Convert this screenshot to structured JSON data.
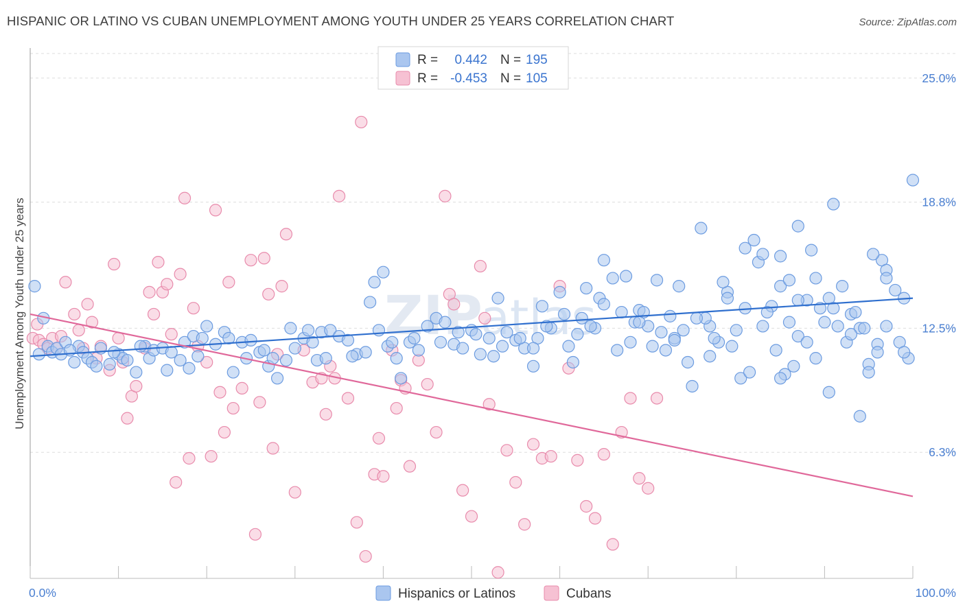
{
  "title": "HISPANIC OR LATINO VS CUBAN UNEMPLOYMENT AMONG YOUTH UNDER 25 YEARS CORRELATION CHART",
  "source": "Source: ZipAtlas.com",
  "colors": {
    "blue_fill": "#aac6ef",
    "blue_stroke": "#6b9be0",
    "blue_line": "#2f6fce",
    "pink_fill": "#f6c1d3",
    "pink_stroke": "#e88aab",
    "pink_line": "#e0689a",
    "axis_text": "#4a7fd1",
    "grid": "#dddddd"
  },
  "legend": {
    "r_label": "R =",
    "n_label": "N =",
    "series1": {
      "r": "0.442",
      "n": "195"
    },
    "series2": {
      "r": "-0.453",
      "n": "105"
    }
  },
  "chart_data": {
    "type": "scatter",
    "title": "HISPANIC OR LATINO VS CUBAN UNEMPLOYMENT AMONG YOUTH UNDER 25 YEARS CORRELATION CHART",
    "xlabel": "",
    "ylabel": "Unemployment Among Youth under 25 years",
    "xlim": [
      0,
      100
    ],
    "ylim": [
      0,
      26.5
    ],
    "x_tick_labels": [
      "0.0%",
      "100.0%"
    ],
    "y_ticks": [
      6.3,
      12.5,
      18.8,
      25.0
    ],
    "y_tick_labels": [
      "6.3%",
      "12.5%",
      "18.8%",
      "25.0%"
    ],
    "legend_position": "top-center",
    "watermark": "ZIPatlas",
    "series": [
      {
        "name": "Hispanics or Latinos",
        "r": 0.442,
        "n": 195,
        "trend": {
          "x": [
            0,
            100
          ],
          "y": [
            11.1,
            14.0
          ]
        },
        "points": [
          [
            0.5,
            14.6
          ],
          [
            1.5,
            13.0
          ],
          [
            2.0,
            11.6
          ],
          [
            2.5,
            11.3
          ],
          [
            3.0,
            11.5
          ],
          [
            3.5,
            11.2
          ],
          [
            4.0,
            11.8
          ],
          [
            5.0,
            10.8
          ],
          [
            5.5,
            11.6
          ],
          [
            6.0,
            11.3
          ],
          [
            6.5,
            11.0
          ],
          [
            7.0,
            10.8
          ],
          [
            8.0,
            11.5
          ],
          [
            9.0,
            10.7
          ],
          [
            10.0,
            11.2
          ],
          [
            10.5,
            11.0
          ],
          [
            11.0,
            10.9
          ],
          [
            12.0,
            10.3
          ],
          [
            13.0,
            11.6
          ],
          [
            13.5,
            11.0
          ],
          [
            14.0,
            11.4
          ],
          [
            15.0,
            11.5
          ],
          [
            16.0,
            11.3
          ],
          [
            17.0,
            10.9
          ],
          [
            17.5,
            11.8
          ],
          [
            18.0,
            10.5
          ],
          [
            18.5,
            12.1
          ],
          [
            19.0,
            11.1
          ],
          [
            20.0,
            12.6
          ],
          [
            21.0,
            11.7
          ],
          [
            22.0,
            12.3
          ],
          [
            23.0,
            10.3
          ],
          [
            24.0,
            11.8
          ],
          [
            25.0,
            11.9
          ],
          [
            26.0,
            11.3
          ],
          [
            27.0,
            10.6
          ],
          [
            27.5,
            11.0
          ],
          [
            28.0,
            10.0
          ],
          [
            29.0,
            10.9
          ],
          [
            30.0,
            11.5
          ],
          [
            31.0,
            12.0
          ],
          [
            32.0,
            11.8
          ],
          [
            32.5,
            10.9
          ],
          [
            33.0,
            12.3
          ],
          [
            34.0,
            12.4
          ],
          [
            35.0,
            12.1
          ],
          [
            36.0,
            11.9
          ],
          [
            37.0,
            11.2
          ],
          [
            38.0,
            11.3
          ],
          [
            38.5,
            13.8
          ],
          [
            39.0,
            14.8
          ],
          [
            40.0,
            15.3
          ],
          [
            40.5,
            11.6
          ],
          [
            41.0,
            11.8
          ],
          [
            42.0,
            10.0
          ],
          [
            43.0,
            11.8
          ],
          [
            44.0,
            11.4
          ],
          [
            45.0,
            12.6
          ],
          [
            46.0,
            13.0
          ],
          [
            47.0,
            12.8
          ],
          [
            48.0,
            11.7
          ],
          [
            49.0,
            11.5
          ],
          [
            50.0,
            12.4
          ],
          [
            51.0,
            11.2
          ],
          [
            52.0,
            12.0
          ],
          [
            52.5,
            11.1
          ],
          [
            53.0,
            14.0
          ],
          [
            54.0,
            12.3
          ],
          [
            55.0,
            11.9
          ],
          [
            56.0,
            11.5
          ],
          [
            57.0,
            10.6
          ],
          [
            57.5,
            12.0
          ],
          [
            58.0,
            13.6
          ],
          [
            59.0,
            12.5
          ],
          [
            60.0,
            14.3
          ],
          [
            61.0,
            11.6
          ],
          [
            62.0,
            12.2
          ],
          [
            63.0,
            14.5
          ],
          [
            64.0,
            12.5
          ],
          [
            65.0,
            15.9
          ],
          [
            66.0,
            15.0
          ],
          [
            67.0,
            13.3
          ],
          [
            68.0,
            11.8
          ],
          [
            69.0,
            13.4
          ],
          [
            70.0,
            12.6
          ],
          [
            71.0,
            14.9
          ],
          [
            72.0,
            11.4
          ],
          [
            73.0,
            12.0
          ],
          [
            74.0,
            12.4
          ],
          [
            75.0,
            9.6
          ],
          [
            76.0,
            17.5
          ],
          [
            77.0,
            12.6
          ],
          [
            78.0,
            11.8
          ],
          [
            79.0,
            14.3
          ],
          [
            80.0,
            12.4
          ],
          [
            81.0,
            13.5
          ],
          [
            82.0,
            16.9
          ],
          [
            83.0,
            12.6
          ],
          [
            84.0,
            13.6
          ],
          [
            85.0,
            14.6
          ],
          [
            85.5,
            10.2
          ],
          [
            86.0,
            12.8
          ],
          [
            87.0,
            12.1
          ],
          [
            88.0,
            13.9
          ],
          [
            89.0,
            11.0
          ],
          [
            90.0,
            12.8
          ],
          [
            90.5,
            14.0
          ],
          [
            91.0,
            13.5
          ],
          [
            92.0,
            14.6
          ],
          [
            93.0,
            13.2
          ],
          [
            94.0,
            12.5
          ],
          [
            95.0,
            10.7
          ],
          [
            96.0,
            11.7
          ],
          [
            97.0,
            12.6
          ],
          [
            98.0,
            14.4
          ],
          [
            99.0,
            14.0
          ],
          [
            99.5,
            11.0
          ],
          [
            1.0,
            11.2
          ],
          [
            4.5,
            11.4
          ],
          [
            7.5,
            10.6
          ],
          [
            9.5,
            11.3
          ],
          [
            12.5,
            11.6
          ],
          [
            15.5,
            10.4
          ],
          [
            19.5,
            12.0
          ],
          [
            22.5,
            12.0
          ],
          [
            24.5,
            11.0
          ],
          [
            26.5,
            11.4
          ],
          [
            29.5,
            12.5
          ],
          [
            31.5,
            12.4
          ],
          [
            33.5,
            11.0
          ],
          [
            36.5,
            11.1
          ],
          [
            39.5,
            12.4
          ],
          [
            41.5,
            11.0
          ],
          [
            43.5,
            12.0
          ],
          [
            46.5,
            11.8
          ],
          [
            48.5,
            12.3
          ],
          [
            50.5,
            12.2
          ],
          [
            53.5,
            11.6
          ],
          [
            55.5,
            12.0
          ],
          [
            58.5,
            12.6
          ],
          [
            60.5,
            13.2
          ],
          [
            62.5,
            13.0
          ],
          [
            64.5,
            14.0
          ],
          [
            66.5,
            11.4
          ],
          [
            68.5,
            12.8
          ],
          [
            70.5,
            11.6
          ],
          [
            72.5,
            13.1
          ],
          [
            74.5,
            10.8
          ],
          [
            76.5,
            13.0
          ],
          [
            78.5,
            14.8
          ],
          [
            80.5,
            10.0
          ],
          [
            82.5,
            15.8
          ],
          [
            84.5,
            11.4
          ],
          [
            86.5,
            10.6
          ],
          [
            88.5,
            16.4
          ],
          [
            90.5,
            9.3
          ],
          [
            92.5,
            11.8
          ],
          [
            94.5,
            12.5
          ],
          [
            96.5,
            15.9
          ],
          [
            98.5,
            11.8
          ],
          [
            57.0,
            11.5
          ],
          [
            61.5,
            10.8
          ],
          [
            63.5,
            12.6
          ],
          [
            67.5,
            15.1
          ],
          [
            69.5,
            13.3
          ],
          [
            71.5,
            12.3
          ],
          [
            73.5,
            14.6
          ],
          [
            75.5,
            13.0
          ],
          [
            77.5,
            12.0
          ],
          [
            79.5,
            11.6
          ],
          [
            81.5,
            10.3
          ],
          [
            83.5,
            13.3
          ],
          [
            85.0,
            16.1
          ],
          [
            86.0,
            14.9
          ],
          [
            87.0,
            13.9
          ],
          [
            88.0,
            11.8
          ],
          [
            89.5,
            13.5
          ],
          [
            91.5,
            12.6
          ],
          [
            93.5,
            13.3
          ],
          [
            94.0,
            8.1
          ],
          [
            95.5,
            16.2
          ],
          [
            96.0,
            11.3
          ],
          [
            97.0,
            15.4
          ],
          [
            99.0,
            11.3
          ],
          [
            100.0,
            19.9
          ],
          [
            65.0,
            13.7
          ],
          [
            69.0,
            12.8
          ],
          [
            73.0,
            11.9
          ],
          [
            77.0,
            11.1
          ],
          [
            79.0,
            14.0
          ],
          [
            81.0,
            16.5
          ],
          [
            83.0,
            16.2
          ],
          [
            85.0,
            10.0
          ],
          [
            87.0,
            17.6
          ],
          [
            89.0,
            15.0
          ],
          [
            91.0,
            18.7
          ],
          [
            93.0,
            12.2
          ],
          [
            95.0,
            10.3
          ],
          [
            97.0,
            15.0
          ]
        ]
      },
      {
        "name": "Cubans",
        "r": -0.453,
        "n": 105,
        "trend": {
          "x": [
            0,
            100
          ],
          "y": [
            13.2,
            4.1
          ]
        },
        "points": [
          [
            0.3,
            12.0
          ],
          [
            0.8,
            12.7
          ],
          [
            1.0,
            11.9
          ],
          [
            1.5,
            11.7
          ],
          [
            2.0,
            11.5
          ],
          [
            2.5,
            12.0
          ],
          [
            3.0,
            11.5
          ],
          [
            3.5,
            12.1
          ],
          [
            4.0,
            14.8
          ],
          [
            5.0,
            13.2
          ],
          [
            5.5,
            12.4
          ],
          [
            6.0,
            11.5
          ],
          [
            6.5,
            13.7
          ],
          [
            7.0,
            12.8
          ],
          [
            7.5,
            11.0
          ],
          [
            8.0,
            11.6
          ],
          [
            9.0,
            10.4
          ],
          [
            9.5,
            15.7
          ],
          [
            10.0,
            12.0
          ],
          [
            10.5,
            10.8
          ],
          [
            11.0,
            8.0
          ],
          [
            11.5,
            9.1
          ],
          [
            12.0,
            9.6
          ],
          [
            13.0,
            11.5
          ],
          [
            13.5,
            14.3
          ],
          [
            14.0,
            13.2
          ],
          [
            14.5,
            15.8
          ],
          [
            15.0,
            14.3
          ],
          [
            15.5,
            14.7
          ],
          [
            16.0,
            12.2
          ],
          [
            16.5,
            4.8
          ],
          [
            17.0,
            15.2
          ],
          [
            17.5,
            19.0
          ],
          [
            18.0,
            6.0
          ],
          [
            18.5,
            13.5
          ],
          [
            19.0,
            11.6
          ],
          [
            20.0,
            10.8
          ],
          [
            20.5,
            6.1
          ],
          [
            21.0,
            18.4
          ],
          [
            21.5,
            9.3
          ],
          [
            22.0,
            7.3
          ],
          [
            22.5,
            14.8
          ],
          [
            23.0,
            8.5
          ],
          [
            24.0,
            9.5
          ],
          [
            25.0,
            15.9
          ],
          [
            25.5,
            2.2
          ],
          [
            26.0,
            8.8
          ],
          [
            26.5,
            16.0
          ],
          [
            27.0,
            14.2
          ],
          [
            27.5,
            6.5
          ],
          [
            28.0,
            11.2
          ],
          [
            28.5,
            14.6
          ],
          [
            29.0,
            17.2
          ],
          [
            30.0,
            4.3
          ],
          [
            31.0,
            11.4
          ],
          [
            32.0,
            9.8
          ],
          [
            33.0,
            10.0
          ],
          [
            33.5,
            8.2
          ],
          [
            34.0,
            10.6
          ],
          [
            34.5,
            10.0
          ],
          [
            35.0,
            19.1
          ],
          [
            36.0,
            9.0
          ],
          [
            37.0,
            2.8
          ],
          [
            37.5,
            22.8
          ],
          [
            38.0,
            1.1
          ],
          [
            39.0,
            5.2
          ],
          [
            39.5,
            7.0
          ],
          [
            40.0,
            5.1
          ],
          [
            41.0,
            11.4
          ],
          [
            41.5,
            8.5
          ],
          [
            42.0,
            9.9
          ],
          [
            42.5,
            9.5
          ],
          [
            43.0,
            5.6
          ],
          [
            44.0,
            10.9
          ],
          [
            45.0,
            9.7
          ],
          [
            46.0,
            7.3
          ],
          [
            47.0,
            19.1
          ],
          [
            47.5,
            14.2
          ],
          [
            48.0,
            13.7
          ],
          [
            49.0,
            4.4
          ],
          [
            50.0,
            3.1
          ],
          [
            51.0,
            15.6
          ],
          [
            51.5,
            13.0
          ],
          [
            52.0,
            8.7
          ],
          [
            53.0,
            0.3
          ],
          [
            54.0,
            6.4
          ],
          [
            55.0,
            4.8
          ],
          [
            56.0,
            2.7
          ],
          [
            57.0,
            6.7
          ],
          [
            58.0,
            6.0
          ],
          [
            59.0,
            6.1
          ],
          [
            60.0,
            14.6
          ],
          [
            61.0,
            10.5
          ],
          [
            62.0,
            5.9
          ],
          [
            63.0,
            3.6
          ],
          [
            64.0,
            3.0
          ],
          [
            65.0,
            6.2
          ],
          [
            66.0,
            1.7
          ],
          [
            67.0,
            7.3
          ],
          [
            68.0,
            9.0
          ],
          [
            69.0,
            5.0
          ],
          [
            70.0,
            4.5
          ],
          [
            71.0,
            9.0
          ]
        ]
      }
    ]
  },
  "bottom_legend": {
    "series1": "Hispanics or Latinos",
    "series2": "Cubans"
  }
}
